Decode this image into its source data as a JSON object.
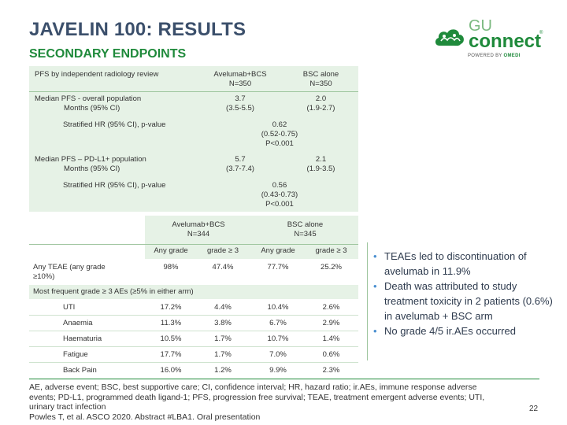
{
  "header": {
    "title": "JAVELIN 100: RESULTS",
    "subtitle": "SECONDARY ENDPOINTS"
  },
  "logo": {
    "line1": "GU",
    "line2": "connect",
    "tm": "®",
    "powered": "POWERED BY",
    "powered_brand": "OMEDI",
    "brand_color": "#1f8a3b"
  },
  "pfs_table": {
    "header_label": "PFS by independent radiology review",
    "col1_line1": "Avelumab+BCS",
    "col1_line2": "N=350",
    "col2_line1": "BSC alone",
    "col2_line2": "N=350",
    "row1_label_line1": "Median PFS - overall population",
    "row1_label_line2": "Months (95% CI)",
    "row1_col1_line1": "3.7",
    "row1_col1_line2": "(3.5-5.5)",
    "row1_col2_line1": "2.0",
    "row1_col2_line2": "(1.9-2.7)",
    "row2_label": "Stratified HR (95% CI), p-value",
    "row2_val_line1": "0.62",
    "row2_val_line2": "(0.52-0.75)",
    "row2_val_line3": "P<0.001",
    "row3_label_line1": "Median PFS – PD-L1+ population",
    "row3_label_line2": "Months (95% CI)",
    "row3_col1_line1": "5.7",
    "row3_col1_line2": "(3.7-7.4)",
    "row3_col2_line1": "2.1",
    "row3_col2_line2": "(1.9-3.5)",
    "row4_label": "Stratified HR (95% CI), p-value",
    "row4_val_line1": "0.56",
    "row4_val_line2": "(0.43-0.73)",
    "row4_val_line3": "P<0.001"
  },
  "ae_table": {
    "col1_line1": "Avelumab+BCS",
    "col1_line2": "N=344",
    "col2_line1": "BSC alone",
    "col2_line2": "N=345",
    "sub1": "Any grade",
    "sub2": "grade ≥ 3",
    "sub3": "Any grade",
    "sub4": "grade ≥ 3",
    "any_teae_line1": "Any TEAE (any grade",
    "any_teae_line2": "≥10%)",
    "any_teae_vals": [
      "98%",
      "47.4%",
      "77.7%",
      "25.2%"
    ],
    "frequent_label": "Most frequent grade ≥ 3 AEs (≥5% in either arm)",
    "rows": [
      {
        "name": "UTI",
        "v": [
          "17.2%",
          "4.4%",
          "10.4%",
          "2.6%"
        ]
      },
      {
        "name": "Anaemia",
        "v": [
          "11.3%",
          "3.8%",
          "6.7%",
          "2.9%"
        ]
      },
      {
        "name": "Haematuria",
        "v": [
          "10.5%",
          "1.7%",
          "10.7%",
          "1.4%"
        ]
      },
      {
        "name": "Fatigue",
        "v": [
          "17.7%",
          "1.7%",
          "7.0%",
          "0.6%"
        ]
      },
      {
        "name": "Back Pain",
        "v": [
          "16.0%",
          "1.2%",
          "9.9%",
          "2.3%"
        ]
      }
    ]
  },
  "bullets": [
    "TEAEs led to discontinuation of avelumab in 11.9%",
    "Death was attributed to study treatment toxicity in 2 patients (0.6%) in avelumab + BSC arm",
    "No grade 4/5 ir.AEs occurred"
  ],
  "footer": {
    "abbrev": "AE, adverse event; BSC, best supportive care; CI, confidence interval; HR, hazard ratio; ir.AEs, immune response adverse events; PD-L1, programmed death ligand-1; PFS, progression free survival; TEAE, treatment emergent adverse events; UTI, urinary tract infection",
    "reference": "Powles T, et al. ASCO 2020. Abstract #LBA1. Oral presentation",
    "page": "22"
  },
  "colors": {
    "title": "#3b4f6b",
    "subtitle": "#1f8a3b",
    "band": "#e6f2e6",
    "bullet_dot": "#4a8fd0"
  }
}
